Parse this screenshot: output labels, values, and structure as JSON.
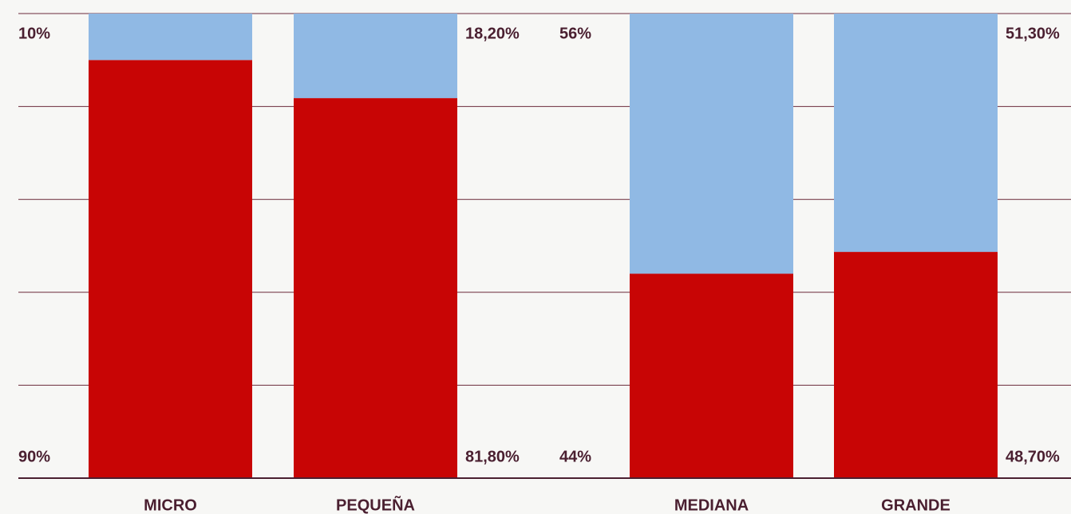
{
  "chart_data": {
    "type": "stacked_bar",
    "categories": [
      "MICRO",
      "PEQUEÑA",
      "MEDIANA",
      "GRANDE"
    ],
    "series": [
      {
        "color": "#c80505",
        "values": [
          90,
          81.8,
          44,
          48.7
        ],
        "value_labels": [
          "90%",
          "81,80%",
          "44%",
          "48,70%"
        ]
      },
      {
        "color": "#90b9e4",
        "values": [
          10,
          18.2,
          56,
          51.3
        ],
        "value_labels": [
          "10%",
          "18,20%",
          "56%",
          "51,30%"
        ]
      }
    ],
    "ylim": [
      0,
      100
    ],
    "yticks": [
      0,
      20,
      40,
      60,
      80,
      100
    ],
    "grid": true
  }
}
